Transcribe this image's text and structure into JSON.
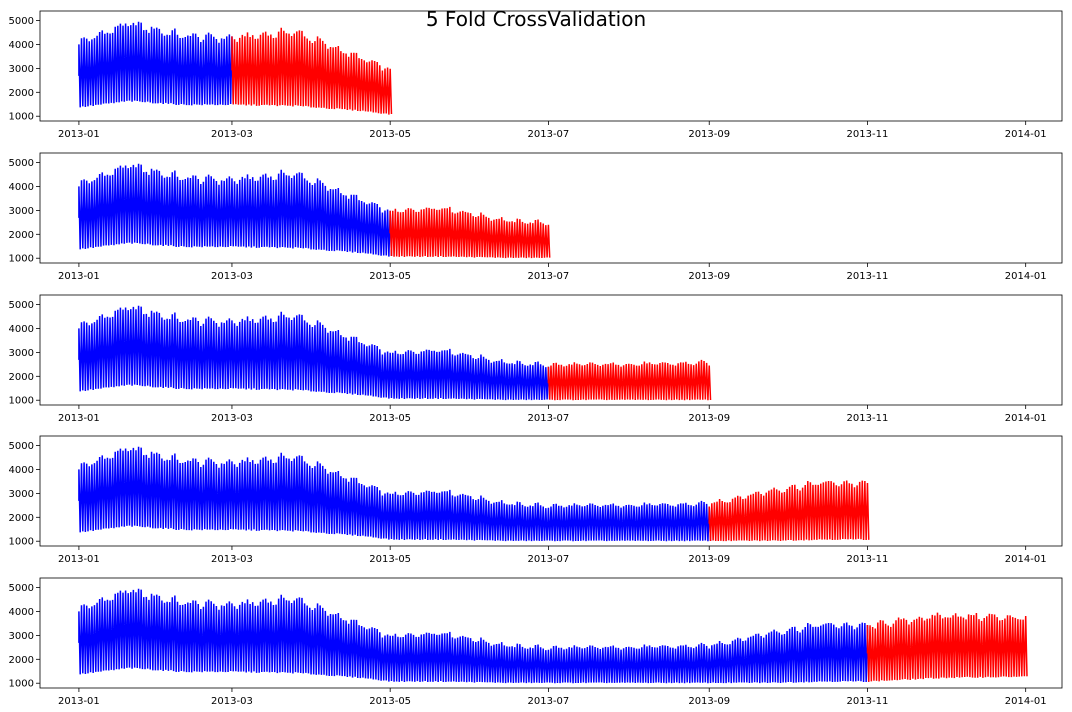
{
  "chart_data": {
    "type": "line",
    "title": "5 Fold CrossValidation",
    "grid": false,
    "legend": "none",
    "xlim": [
      "2012-12-17",
      "2014-01-15"
    ],
    "ylim": [
      800,
      5400
    ],
    "x_ticks": [
      "2013-01",
      "2013-03",
      "2013-05",
      "2013-07",
      "2013-09",
      "2013-11",
      "2014-01"
    ],
    "y_ticks": [
      1000,
      2000,
      3000,
      4000,
      5000
    ],
    "colors": {
      "train": "#0000ff",
      "test": "#ff0000"
    },
    "series_shape": {
      "note_units": "values are daily; each day oscillates between a daily minimum and a daily maximum",
      "envelope": [
        {
          "date": "2013-01-01",
          "low": 1350,
          "high": 4300
        },
        {
          "date": "2013-01-20",
          "low": 1600,
          "high": 5150
        },
        {
          "date": "2013-02-10",
          "low": 1450,
          "high": 4600
        },
        {
          "date": "2013-03-01",
          "low": 1450,
          "high": 4500
        },
        {
          "date": "2013-03-25",
          "low": 1400,
          "high": 4800
        },
        {
          "date": "2013-04-20",
          "low": 1200,
          "high": 3600
        },
        {
          "date": "2013-05-01",
          "low": 1050,
          "high": 3100
        },
        {
          "date": "2013-05-20",
          "low": 1050,
          "high": 3300
        },
        {
          "date": "2013-06-15",
          "low": 1000,
          "high": 2700
        },
        {
          "date": "2013-07-01",
          "low": 1000,
          "high": 2600
        },
        {
          "date": "2013-08-15",
          "low": 1000,
          "high": 2650
        },
        {
          "date": "2013-09-01",
          "low": 1000,
          "high": 2700
        },
        {
          "date": "2013-09-25",
          "low": 1000,
          "high": 3300
        },
        {
          "date": "2013-10-15",
          "low": 1050,
          "high": 3650
        },
        {
          "date": "2013-11-01",
          "low": 1050,
          "high": 3600
        },
        {
          "date": "2013-11-30",
          "low": 1200,
          "high": 4050
        },
        {
          "date": "2014-01-01",
          "low": 1250,
          "high": 3950
        }
      ]
    },
    "folds": [
      {
        "train": [
          "2013-01-01",
          "2013-03-01"
        ],
        "test": [
          "2013-03-01",
          "2013-05-01"
        ]
      },
      {
        "train": [
          "2013-01-01",
          "2013-05-01"
        ],
        "test": [
          "2013-05-01",
          "2013-07-01"
        ]
      },
      {
        "train": [
          "2013-01-01",
          "2013-07-01"
        ],
        "test": [
          "2013-07-01",
          "2013-09-01"
        ]
      },
      {
        "train": [
          "2013-01-01",
          "2013-09-01"
        ],
        "test": [
          "2013-09-01",
          "2013-11-01"
        ]
      },
      {
        "train": [
          "2013-01-01",
          "2013-11-01"
        ],
        "test": [
          "2013-11-01",
          "2014-01-01"
        ]
      }
    ]
  }
}
